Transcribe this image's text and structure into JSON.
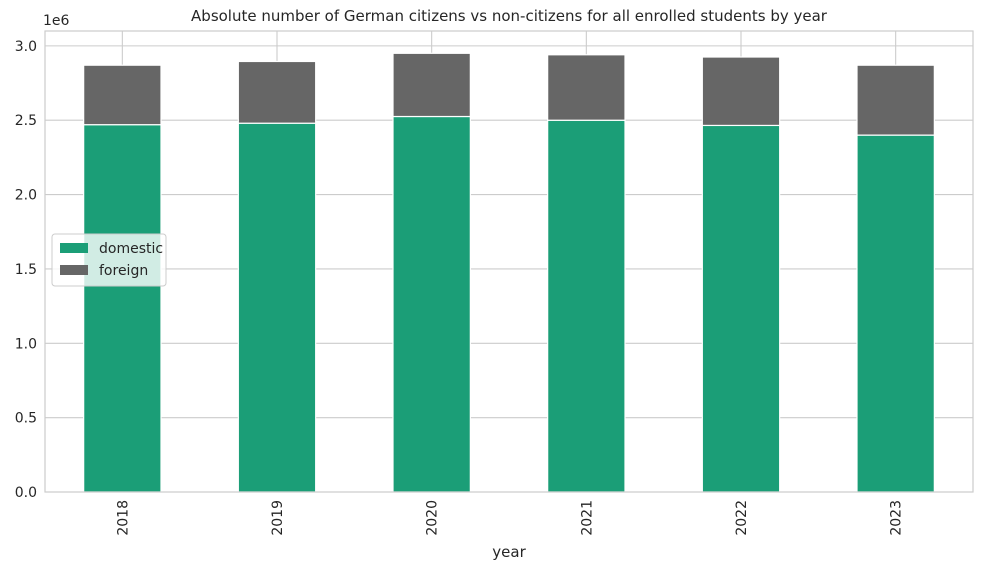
{
  "chart_data": {
    "type": "bar",
    "stacked": true,
    "title": "Absolute number of German citizens vs non-citizens for all enrolled students by year",
    "xlabel": "year",
    "ylabel": "",
    "y_offset_label": "1e6",
    "ylim": [
      0,
      3100000
    ],
    "y_ticks": [
      0,
      500000,
      1000000,
      1500000,
      2000000,
      2500000,
      3000000
    ],
    "y_tick_labels": [
      "0.0",
      "0.5",
      "1.0",
      "1.5",
      "2.0",
      "2.5",
      "3.0"
    ],
    "categories": [
      "2018",
      "2019",
      "2020",
      "2021",
      "2022",
      "2023"
    ],
    "series": [
      {
        "name": "domestic",
        "color": "#1b9e77",
        "values": [
          2470000,
          2480000,
          2525000,
          2500000,
          2465000,
          2400000
        ]
      },
      {
        "name": "foreign",
        "color": "#666666",
        "values": [
          400000,
          415000,
          425000,
          440000,
          460000,
          470000
        ]
      }
    ],
    "grid": true,
    "legend_position": "center-left"
  }
}
